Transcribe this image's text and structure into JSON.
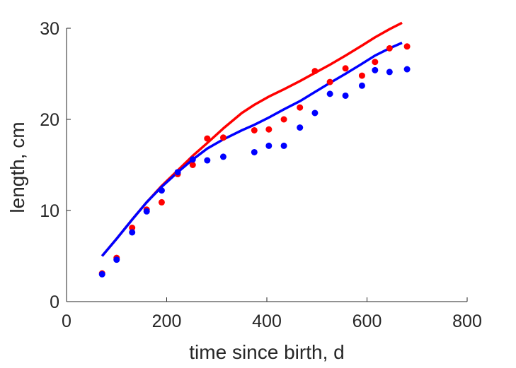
{
  "chart_data": {
    "type": "scatter",
    "title": "",
    "xlabel": "time since birth, d",
    "ylabel": "length, cm",
    "xlim": [
      0,
      800
    ],
    "ylim": [
      0,
      30
    ],
    "xticks": [
      0,
      200,
      400,
      600,
      800
    ],
    "yticks": [
      0,
      10,
      20,
      30
    ],
    "xtick_labels": [
      "0",
      "200",
      "400",
      "600",
      "800"
    ],
    "ytick_labels": [
      "0",
      "10",
      "20",
      "30"
    ],
    "grid": false,
    "series": [
      {
        "kind": "points",
        "color": "#ff0000",
        "x": [
          71,
          100,
          131,
          160,
          190,
          222,
          252,
          281,
          313,
          375,
          404,
          434,
          466,
          496,
          526,
          557,
          590,
          616,
          645,
          680
        ],
        "y": [
          3.1,
          4.8,
          8.1,
          10.1,
          10.9,
          14.0,
          15.0,
          17.9,
          18.0,
          18.8,
          18.9,
          20.0,
          21.3,
          25.3,
          24.1,
          25.6,
          24.8,
          26.3,
          27.8,
          28.0
        ]
      },
      {
        "kind": "points",
        "color": "#0000ff",
        "x": [
          71,
          100,
          131,
          160,
          190,
          222,
          252,
          281,
          313,
          375,
          404,
          434,
          466,
          496,
          526,
          557,
          590,
          616,
          645,
          680
        ],
        "y": [
          3.0,
          4.6,
          7.6,
          9.9,
          12.2,
          14.2,
          15.6,
          15.5,
          15.9,
          16.4,
          17.1,
          17.1,
          19.1,
          20.7,
          22.8,
          22.6,
          23.7,
          25.4,
          25.2,
          25.5
        ]
      },
      {
        "kind": "line",
        "color": "#ff0000",
        "x": [
          71,
          100,
          131,
          160,
          190,
          222,
          252,
          281,
          313,
          350,
          375,
          404,
          434,
          466,
          496,
          526,
          557,
          590,
          616,
          645,
          670
        ],
        "y": [
          5.0,
          6.9,
          9.0,
          10.9,
          12.7,
          14.4,
          16.0,
          17.4,
          19.0,
          20.7,
          21.6,
          22.5,
          23.3,
          24.2,
          25.1,
          26.0,
          27.0,
          28.1,
          29.0,
          29.9,
          30.6
        ]
      },
      {
        "kind": "line",
        "color": "#0000ff",
        "x": [
          71,
          100,
          131,
          160,
          190,
          222,
          252,
          281,
          313,
          350,
          375,
          404,
          434,
          466,
          496,
          526,
          557,
          590,
          616,
          645,
          670
        ],
        "y": [
          5.0,
          6.9,
          9.0,
          10.9,
          12.6,
          14.2,
          15.6,
          16.8,
          17.8,
          18.8,
          19.4,
          20.2,
          21.1,
          22.0,
          23.0,
          24.0,
          25.0,
          26.1,
          27.0,
          27.8,
          28.4
        ]
      }
    ]
  }
}
